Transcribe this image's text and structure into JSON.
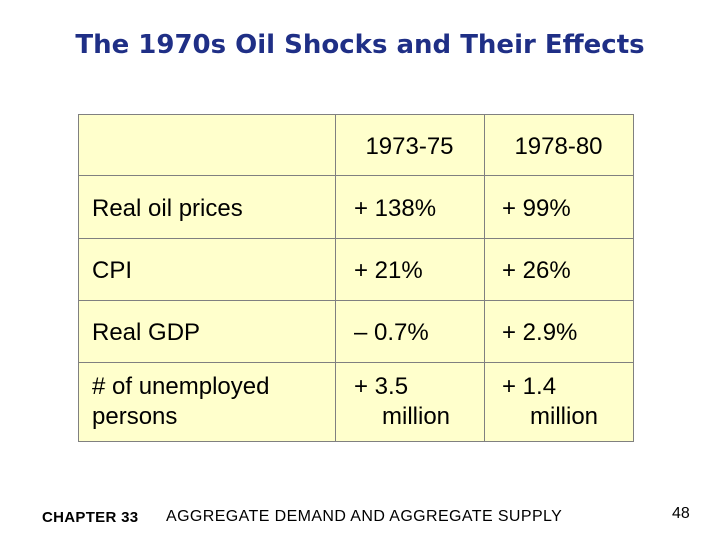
{
  "slide": {
    "title": "The 1970s Oil Shocks and Their Effects"
  },
  "table": {
    "columns": [
      "",
      "1973-75",
      "1978-80"
    ],
    "rows": [
      {
        "label": "Real oil prices",
        "v1": "+ 138%",
        "v2": "+ 99%"
      },
      {
        "label": "CPI",
        "v1": "+ 21%",
        "v2": "+ 26%"
      },
      {
        "label": "Real GDP",
        "v1": "– 0.7%",
        "v2": "+ 2.9%"
      },
      {
        "label_line1": "# of unemployed",
        "label_line2": "persons",
        "v1_line1": "+ 3.5",
        "v1_line2": "million",
        "v2_line1": "+ 1.4",
        "v2_line2": "million"
      }
    ],
    "background": "#ffffcc"
  },
  "footer": {
    "chapter": "CHAPTER 33",
    "topic": "AGGREGATE DEMAND AND AGGREGATE SUPPLY",
    "page_number": "48"
  },
  "colors": {
    "title": "#1f2f86"
  }
}
